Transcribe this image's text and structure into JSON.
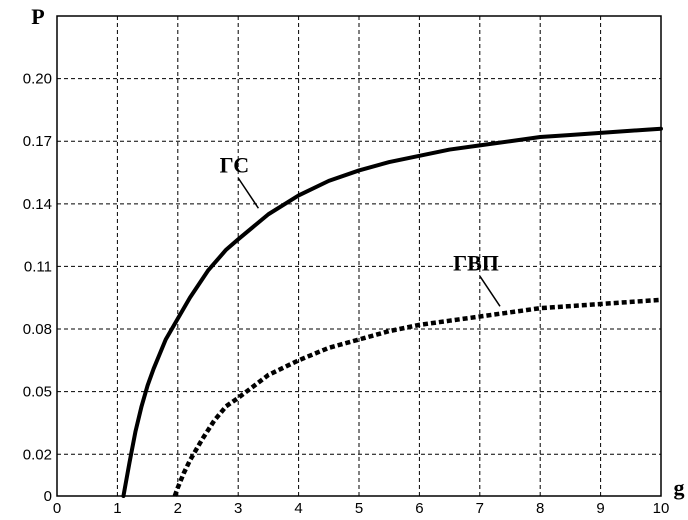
{
  "chart_data": {
    "type": "line",
    "title": "",
    "xlabel": "g",
    "ylabel": "P",
    "xlim": [
      0,
      10
    ],
    "ylim": [
      0,
      0.23
    ],
    "xticks": [
      "0",
      "1",
      "2",
      "3",
      "4",
      "5",
      "6",
      "7",
      "8",
      "9",
      "10"
    ],
    "yticks": [
      "0",
      "0.02",
      "0.05",
      "0.08",
      "0.11",
      "0.14",
      "0.17",
      "0.20"
    ],
    "grid": true,
    "colors": {
      "line": "#000000",
      "grid": "#000000",
      "background": "#ffffff"
    },
    "series": [
      {
        "style": "solid",
        "annotation": "ГС",
        "annotation_at": 3.5,
        "x": [
          1.1,
          1.15,
          1.2,
          1.3,
          1.4,
          1.5,
          1.6,
          1.8,
          2.0,
          2.2,
          2.5,
          2.8,
          3.0,
          3.5,
          4.0,
          4.5,
          5.0,
          5.5,
          6.0,
          6.5,
          7.0,
          7.5,
          8.0,
          8.5,
          9.0,
          9.5,
          10.0
        ],
        "y": [
          0.0,
          0.008,
          0.016,
          0.031,
          0.043,
          0.053,
          0.061,
          0.075,
          0.085,
          0.095,
          0.108,
          0.118,
          0.123,
          0.135,
          0.144,
          0.151,
          0.156,
          0.16,
          0.163,
          0.166,
          0.168,
          0.17,
          0.172,
          0.173,
          0.174,
          0.175,
          0.176
        ]
      },
      {
        "style": "dotted",
        "annotation": "ГВП",
        "annotation_at": 7.5,
        "x": [
          1.95,
          2.0,
          2.1,
          2.2,
          2.4,
          2.6,
          2.8,
          3.0,
          3.5,
          4.0,
          4.5,
          5.0,
          5.5,
          6.0,
          6.5,
          7.0,
          7.5,
          8.0,
          8.5,
          9.0,
          9.5,
          10.0
        ],
        "y": [
          0.0,
          0.004,
          0.011,
          0.017,
          0.027,
          0.036,
          0.043,
          0.047,
          0.058,
          0.065,
          0.071,
          0.075,
          0.079,
          0.082,
          0.084,
          0.086,
          0.088,
          0.09,
          0.091,
          0.092,
          0.093,
          0.094
        ]
      }
    ]
  }
}
